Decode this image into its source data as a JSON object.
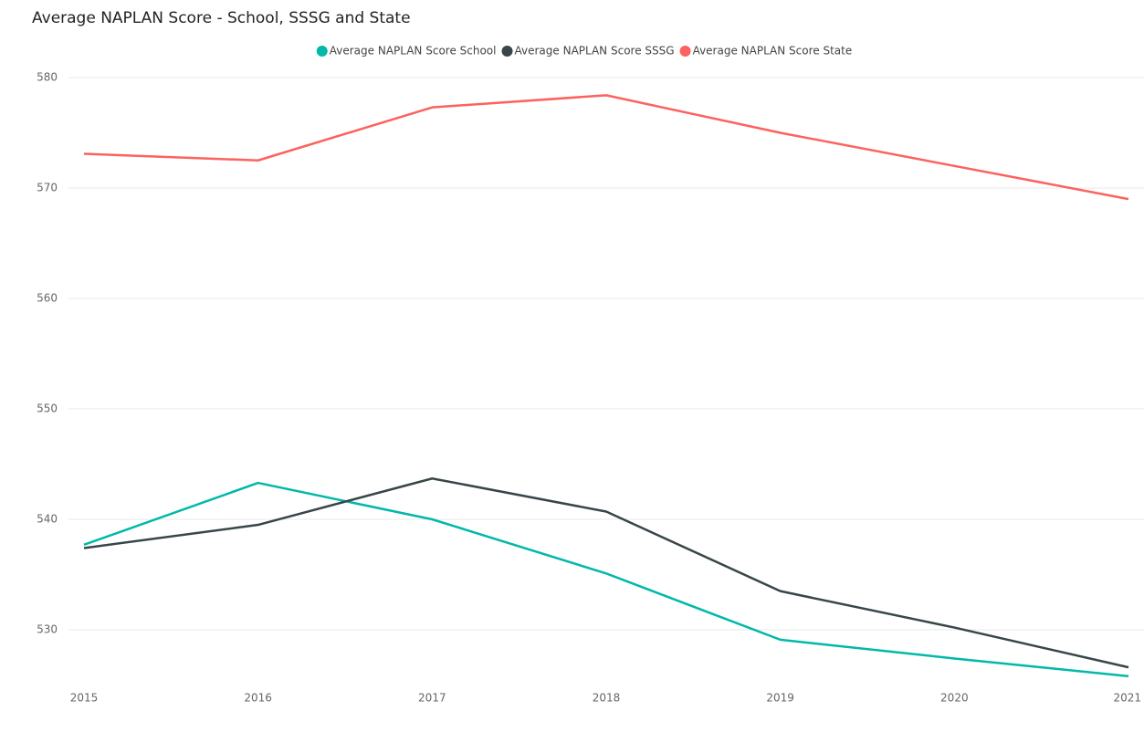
{
  "chart_data": {
    "type": "line",
    "title": "Average NAPLAN Score - School, SSSG and State",
    "categories": [
      "2015",
      "2016",
      "2017",
      "2018",
      "2019",
      "2020",
      "2021"
    ],
    "series": [
      {
        "name": "Average NAPLAN Score School",
        "color": "#01b8aa",
        "values": [
          537.7,
          543.3,
          540.0,
          535.1,
          529.1,
          527.4,
          525.8
        ]
      },
      {
        "name": "Average NAPLAN Score SSSG",
        "color": "#374649",
        "values": [
          537.4,
          539.5,
          543.7,
          540.7,
          533.5,
          530.2,
          526.6
        ]
      },
      {
        "name": "Average NAPLAN Score State",
        "color": "#fd625e",
        "values": [
          573.1,
          572.5,
          577.3,
          578.4,
          575.0,
          572.0,
          569.0
        ]
      }
    ],
    "ylim": [
      525,
      580
    ],
    "yticks": [
      530,
      540,
      550,
      560,
      570,
      580
    ],
    "grid": true,
    "legend": "top"
  }
}
